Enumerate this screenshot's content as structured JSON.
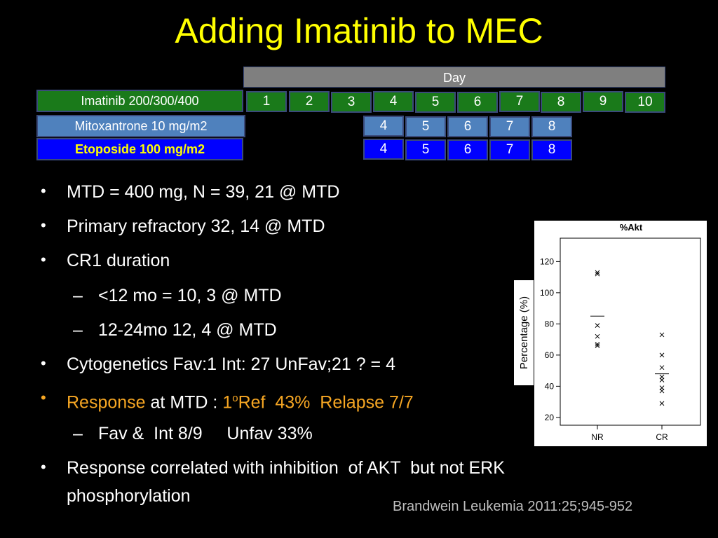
{
  "title": "Adding Imatinib to MEC",
  "schedule": {
    "header": "Day",
    "drugs": {
      "imatinib": "Imatinib 200/300/400",
      "mitoxantrone": "Mitoxantrone 10 mg/m2",
      "etoposide": "Etoposide 100 mg/m2"
    },
    "imatinib_days": [
      "1",
      "2",
      "3",
      "4",
      "5",
      "6",
      "7",
      "8",
      "9",
      "10"
    ],
    "mito_days": [
      "4",
      "5",
      "6",
      "7",
      "8"
    ],
    "etop_days": [
      "4",
      "5",
      "6",
      "7",
      "8"
    ]
  },
  "bullets": {
    "b1": "MTD = 400 mg, N = 39, 21 @ MTD",
    "b2": "Primary refractory 32, 14 @ MTD",
    "b3": "CR1 duration",
    "b3a": "<12 mo  = 10, 3 @ MTD",
    "b3b": "12-24mo 12, 4 @ MTD",
    "b4": "Cytogenetics  Fav:1 Int: 27 UnFav;21  ? = 4",
    "b5_response": "Response",
    "b5_mid": " at MTD : ",
    "b5_one": "1",
    "b5_sup": "o",
    "b5_rest": "Ref  43%  Relapse 7/7",
    "b5a": "Fav &  Int 8/9     Unfav 33%",
    "b6_line1": "Response correlated with inhibition  of AKT  but not ERK",
    "b6_line2": "phosphorylation",
    "bullet_char": "•",
    "dash_char": "–"
  },
  "reference": "Brandwein   Leukemia 2011:25;945-952",
  "chart_data": {
    "type": "scatter",
    "title": "%Akt",
    "ylabel": "Percentage (%)",
    "xlabel": "",
    "categories": [
      "NR",
      "CR"
    ],
    "ylim": [
      15,
      135
    ],
    "yticks": [
      20,
      40,
      60,
      80,
      100,
      120
    ],
    "marker": "x",
    "series": [
      {
        "category": "NR",
        "values": [
          113,
          112,
          79,
          72,
          67,
          66
        ],
        "mean": 85
      },
      {
        "category": "CR",
        "values": [
          73,
          60,
          52,
          46,
          44,
          39,
          37,
          29
        ],
        "mean": 48
      }
    ]
  }
}
